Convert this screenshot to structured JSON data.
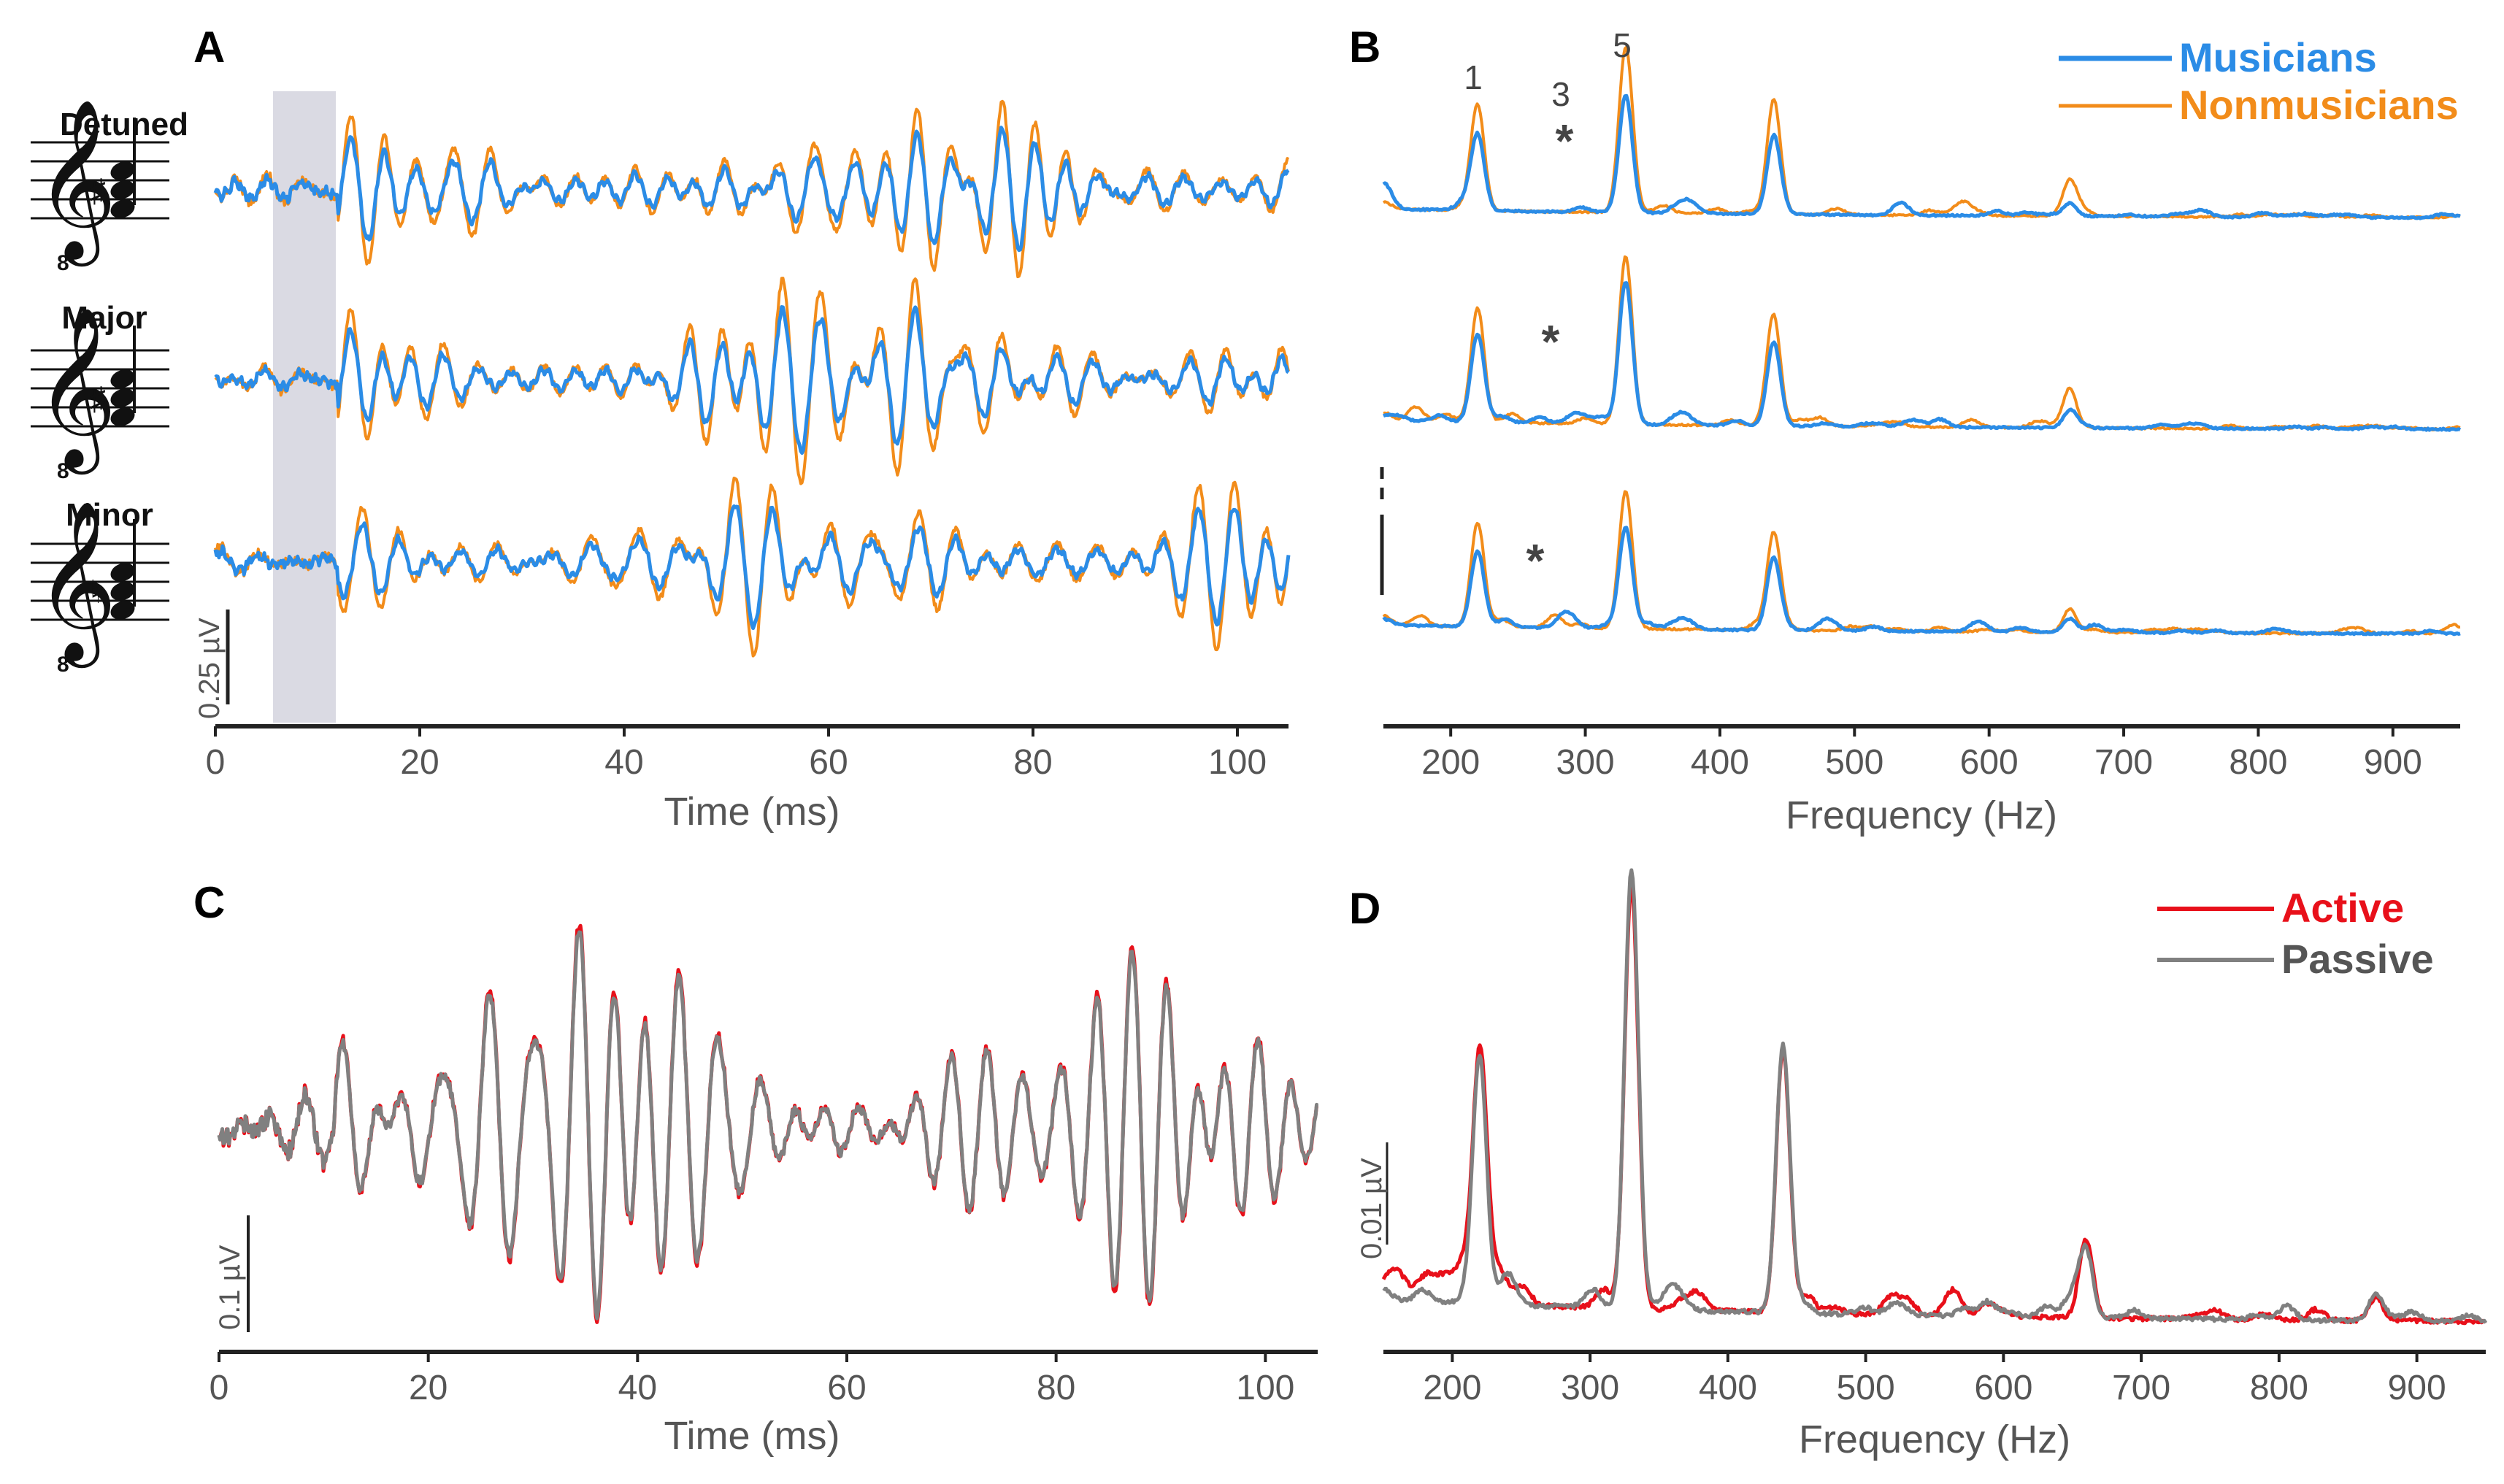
{
  "colors": {
    "musicians": "#2B8CE6",
    "nonmusicians": "#F28C1A",
    "active": "#E8101A",
    "passive": "#808080",
    "axis": "#222222",
    "shade": "#DADAE3"
  },
  "panels": {
    "A": {
      "letter": "A",
      "scale_label": "0.25 µV"
    },
    "B": {
      "letter": "B",
      "peak_labels": [
        "1",
        "3",
        "5"
      ],
      "star": "*"
    },
    "C": {
      "letter": "C",
      "scale_label": "0.1 µV"
    },
    "D": {
      "letter": "D",
      "scale_label": "0.01 µV"
    }
  },
  "notation": {
    "chords": [
      "Detuned",
      "Major",
      "Minor"
    ],
    "octave_mark": "8"
  },
  "chart_data": [
    {
      "panel": "A",
      "type": "line",
      "title": "",
      "xlabel": "Time (ms)",
      "ylabel": "",
      "xlim": [
        0,
        105
      ],
      "xticks": [
        "0",
        "20",
        "40",
        "60",
        "80",
        "100"
      ],
      "shaded_region_ms": [
        5.5,
        11.5
      ],
      "rows": [
        "Detuned",
        "Major",
        "Minor"
      ],
      "series": [
        {
          "name": "Musicians",
          "color": "#2B8CE6"
        },
        {
          "name": "Nonmusicians",
          "color": "#F28C1A"
        }
      ]
    },
    {
      "panel": "B",
      "type": "line",
      "xlabel": "Frequency (Hz)",
      "xlim": [
        150,
        950
      ],
      "xticks": [
        "200",
        "300",
        "400",
        "500",
        "600",
        "700",
        "800",
        "900"
      ],
      "legend": [
        "Musicians",
        "Nonmusicians"
      ],
      "legend_position": "top-right",
      "rows": [
        "Detuned",
        "Major",
        "Minor"
      ],
      "annotations": [
        {
          "text": "1",
          "freq": 220
        },
        {
          "text": "3",
          "freq": 283
        },
        {
          "text": "5",
          "freq": 330
        },
        {
          "text": "*",
          "freq": 283,
          "row": "Detuned"
        },
        {
          "text": "*",
          "freq": 272,
          "row": "Major"
        },
        {
          "text": "*",
          "freq": 262,
          "row": "Minor"
        }
      ],
      "peaks": [
        {
          "freq": 220,
          "musicians": [
            0.45,
            0.5,
            0.45
          ],
          "nonmusicians": [
            0.62,
            0.68,
            0.62
          ]
        },
        {
          "freq": 330,
          "musicians": [
            0.7,
            0.85,
            0.6
          ],
          "nonmusicians": [
            0.88,
            1.0,
            0.8
          ]
        },
        {
          "freq": 440,
          "musicians": [
            0.45,
            0.5,
            0.4
          ],
          "nonmusicians": [
            0.6,
            0.62,
            0.55
          ]
        },
        {
          "freq": 660,
          "musicians": [
            0.07,
            0.1,
            0.08
          ],
          "nonmusicians": [
            0.17,
            0.22,
            0.14
          ]
        }
      ]
    },
    {
      "panel": "C",
      "type": "line",
      "xlabel": "Time (ms)",
      "xlim": [
        0,
        105
      ],
      "xticks": [
        "0",
        "20",
        "40",
        "60",
        "80",
        "100"
      ],
      "series": [
        {
          "name": "Active",
          "color": "#E8101A"
        },
        {
          "name": "Passive",
          "color": "#808080"
        }
      ]
    },
    {
      "panel": "D",
      "type": "line",
      "xlabel": "Frequency (Hz)",
      "xlim": [
        150,
        950
      ],
      "xticks": [
        "200",
        "300",
        "400",
        "500",
        "600",
        "700",
        "800",
        "900"
      ],
      "legend": [
        "Active",
        "Passive"
      ],
      "legend_position": "top-right",
      "peaks": [
        {
          "freq": 220,
          "active": 0.58,
          "passive": 0.55
        },
        {
          "freq": 330,
          "active": 1.0,
          "passive": 1.02
        },
        {
          "freq": 440,
          "active": 0.62,
          "passive": 0.63
        },
        {
          "freq": 660,
          "active": 0.17,
          "passive": 0.15
        },
        {
          "freq": 870,
          "active": 0.05,
          "passive": 0.06
        }
      ]
    }
  ]
}
